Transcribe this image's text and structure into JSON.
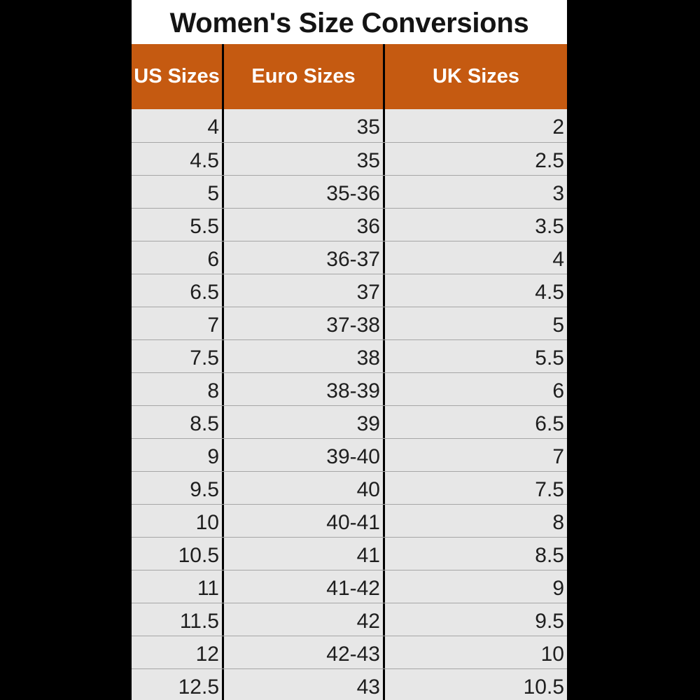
{
  "title": "Women's Size Conversions",
  "colors": {
    "header_background": "#c55a11",
    "header_text": "#ffffff",
    "row_background": "#e7e7e7",
    "page_background": "#000000"
  },
  "columns": [
    "US Sizes",
    "Euro Sizes",
    "UK Sizes"
  ],
  "rows": [
    [
      "4",
      "35",
      "2"
    ],
    [
      "4.5",
      "35",
      "2.5"
    ],
    [
      "5",
      "35-36",
      "3"
    ],
    [
      "5.5",
      "36",
      "3.5"
    ],
    [
      "6",
      "36-37",
      "4"
    ],
    [
      "6.5",
      "37",
      "4.5"
    ],
    [
      "7",
      "37-38",
      "5"
    ],
    [
      "7.5",
      "38",
      "5.5"
    ],
    [
      "8",
      "38-39",
      "6"
    ],
    [
      "8.5",
      "39",
      "6.5"
    ],
    [
      "9",
      "39-40",
      "7"
    ],
    [
      "9.5",
      "40",
      "7.5"
    ],
    [
      "10",
      "40-41",
      "8"
    ],
    [
      "10.5",
      "41",
      "8.5"
    ],
    [
      "11",
      "41-42",
      "9"
    ],
    [
      "11.5",
      "42",
      "9.5"
    ],
    [
      "12",
      "42-43",
      "10"
    ],
    [
      "12.5",
      "43",
      "10.5"
    ]
  ]
}
